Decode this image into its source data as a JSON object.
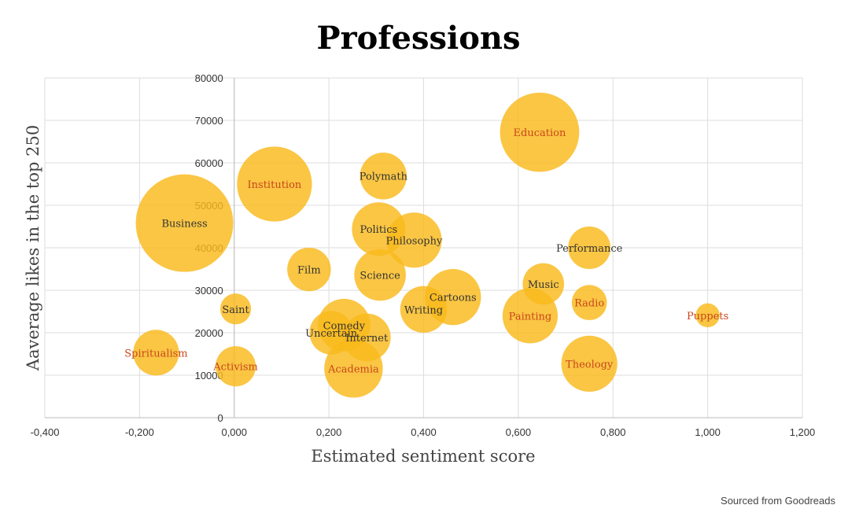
{
  "chart_data": {
    "type": "scatter",
    "subtype": "bubble",
    "title": "Professions",
    "xlabel": "Estimated sentiment score",
    "ylabel": "Aaverage likes in the top 250",
    "xlim": [
      -0.4,
      1.2
    ],
    "ylim": [
      0,
      80000
    ],
    "x_ticks": [
      "-0,400",
      "-0,200",
      "0,000",
      "0,200",
      "0,400",
      "0,600",
      "0,800",
      "1,000",
      "1,200"
    ],
    "x_tick_values": [
      -0.4,
      -0.2,
      0,
      0.2,
      0.4,
      0.6,
      0.8,
      1.0,
      1.2
    ],
    "y_ticks": [
      "0",
      "10000",
      "20000",
      "30000",
      "40000",
      "50000",
      "60000",
      "70000",
      "80000"
    ],
    "y_tick_values": [
      0,
      10000,
      20000,
      30000,
      40000,
      50000,
      60000,
      70000,
      80000
    ],
    "grid": true,
    "bubble_color": "#f9b91b",
    "label_colors": {
      "dark": "#333333",
      "orange": "#c9461a"
    },
    "points": [
      {
        "label": "Business",
        "x": -0.105,
        "y": 45800,
        "size": 100,
        "label_color": "dark"
      },
      {
        "label": "Institution",
        "x": 0.085,
        "y": 55000,
        "size": 59,
        "label_color": "orange"
      },
      {
        "label": "Education",
        "x": 0.645,
        "y": 67200,
        "size": 66,
        "label_color": "orange"
      },
      {
        "label": "Polymath",
        "x": 0.315,
        "y": 56900,
        "size": 23,
        "label_color": "dark"
      },
      {
        "label": "Politics",
        "x": 0.305,
        "y": 44400,
        "size": 30,
        "label_color": "dark"
      },
      {
        "label": "Philosophy",
        "x": 0.38,
        "y": 41800,
        "size": 32,
        "label_color": "dark"
      },
      {
        "label": "Performance",
        "x": 0.75,
        "y": 40000,
        "size": 19,
        "label_color": "dark"
      },
      {
        "label": "Film",
        "x": 0.158,
        "y": 34900,
        "size": 20,
        "label_color": "dark"
      },
      {
        "label": "Science",
        "x": 0.308,
        "y": 33600,
        "size": 28,
        "label_color": "dark"
      },
      {
        "label": "Music",
        "x": 0.653,
        "y": 31500,
        "size": 18,
        "label_color": "dark"
      },
      {
        "label": "Cartoons",
        "x": 0.462,
        "y": 28400,
        "size": 33,
        "label_color": "dark"
      },
      {
        "label": "Radio",
        "x": 0.75,
        "y": 27100,
        "size": 13,
        "label_color": "orange"
      },
      {
        "label": "Saint",
        "x": 0.003,
        "y": 25600,
        "size": 10,
        "label_color": "dark"
      },
      {
        "label": "Writing",
        "x": 0.4,
        "y": 25500,
        "size": 23,
        "label_color": "dark"
      },
      {
        "label": "Painting",
        "x": 0.625,
        "y": 24000,
        "size": 32,
        "label_color": "orange"
      },
      {
        "label": "Puppets",
        "x": 1.0,
        "y": 24100,
        "size": 6,
        "label_color": "orange"
      },
      {
        "label": "Comedy",
        "x": 0.232,
        "y": 21800,
        "size": 29,
        "label_color": "dark"
      },
      {
        "label": "Uncertain",
        "x": 0.205,
        "y": 20000,
        "size": 20,
        "label_color": "dark"
      },
      {
        "label": "Internet",
        "x": 0.28,
        "y": 18900,
        "size": 24,
        "label_color": "dark"
      },
      {
        "label": "Spiritualism",
        "x": -0.165,
        "y": 15300,
        "size": 22,
        "label_color": "orange"
      },
      {
        "label": "Theology",
        "x": 0.75,
        "y": 12700,
        "size": 33,
        "label_color": "orange"
      },
      {
        "label": "Activism",
        "x": 0.003,
        "y": 12100,
        "size": 17,
        "label_color": "orange"
      },
      {
        "label": "Academia",
        "x": 0.252,
        "y": 11600,
        "size": 36,
        "label_color": "orange"
      }
    ]
  },
  "footer": {
    "source": "Sourced from Goodreads"
  }
}
